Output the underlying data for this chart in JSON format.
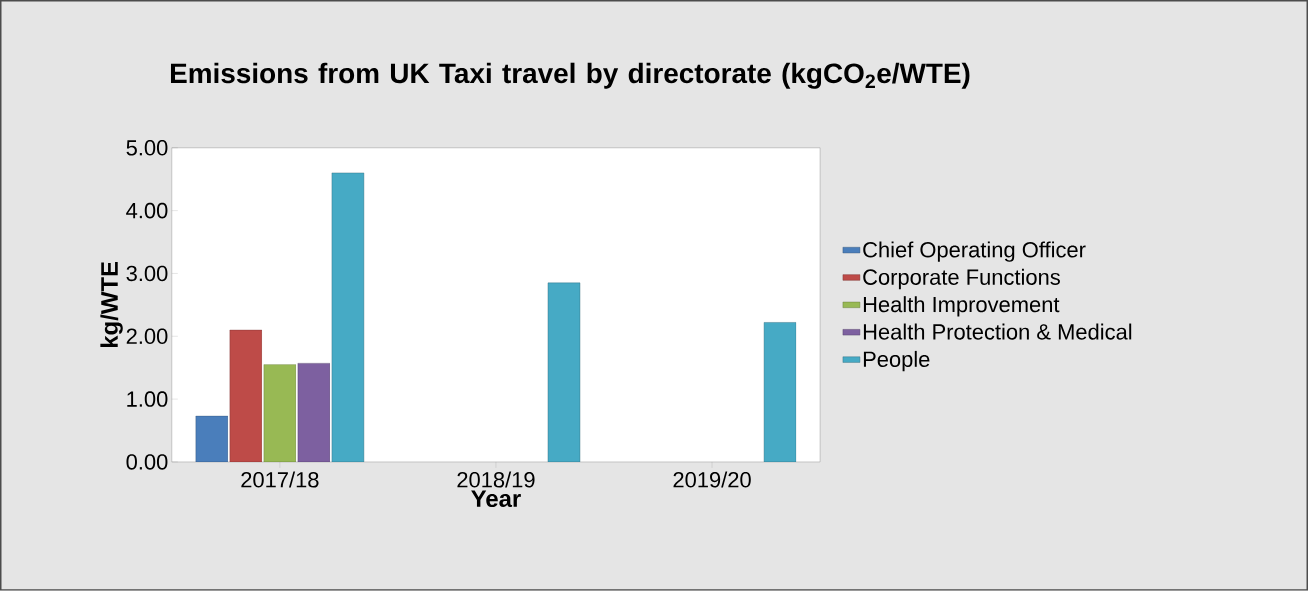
{
  "chart_data": {
    "type": "bar",
    "title": "Emissions from UK Taxi travel by directorate (kgCO$_{2}$e/WTE)",
    "xlabel": "Year",
    "ylabel": "kg/WTE",
    "categories": [
      "2017/18",
      "2018/19",
      "2019/20"
    ],
    "series": [
      {
        "name": "Chief Operating Officer",
        "color": "#4a7ebb",
        "values": [
          0.73,
          null,
          null
        ]
      },
      {
        "name": "Corporate Functions",
        "color": "#be4b48",
        "values": [
          2.1,
          null,
          null
        ]
      },
      {
        "name": "Health Improvement",
        "color": "#98b954",
        "values": [
          1.55,
          null,
          null
        ]
      },
      {
        "name": "Health Protection & Medical",
        "color": "#7d60a0",
        "values": [
          1.57,
          null,
          null
        ]
      },
      {
        "name": "People",
        "color": "#46aac5",
        "values": [
          4.6,
          2.85,
          2.22
        ]
      }
    ],
    "ylim": [
      0,
      5
    ],
    "yticks": [
      {
        "value": 0,
        "label": "0.00"
      },
      {
        "value": 1,
        "label": "1.00"
      },
      {
        "value": 2,
        "label": "2.00"
      },
      {
        "value": 3,
        "label": "3.00"
      },
      {
        "value": 4,
        "label": "4.00"
      },
      {
        "value": 5,
        "label": "5.00"
      }
    ],
    "legend": "right"
  }
}
